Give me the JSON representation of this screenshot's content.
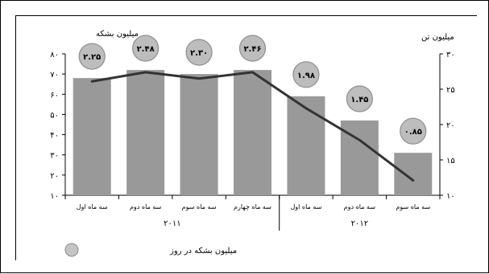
{
  "chart_data": {
    "type": "bar",
    "left_axis_label": "میلیون بشکه",
    "right_axis_label": "میلیون تن",
    "left_ticks": [
      "۱۰",
      "۲۰",
      "۳۰",
      "۴۰",
      "۵۰",
      "۶۰",
      "۷۰",
      "۸۰"
    ],
    "right_ticks": [
      "۱۰",
      "۱۵",
      "۲۰",
      "۲۵",
      "۳۰"
    ],
    "left_ylim": [
      10,
      80
    ],
    "right_ylim": [
      10,
      30
    ],
    "categories": [
      "سه ماه اول",
      "سه ماه دوم",
      "سه ماه سوم",
      "سه ماه چهارم",
      "سه ماه اول",
      "سه ماه دوم",
      "سه ماه سوم"
    ],
    "year_groups": [
      {
        "label": "۲۰۱۱",
        "count": 4
      },
      {
        "label": "۲۰۱۲",
        "count": 3
      }
    ],
    "series": [
      {
        "name": "",
        "kind": "bar",
        "axis": "left",
        "color": "#999999",
        "values": [
          68,
          72,
          70,
          72,
          59,
          47,
          31
        ]
      },
      {
        "name": "",
        "kind": "line",
        "axis": "right",
        "color": "#333333",
        "values": [
          26.1,
          27.4,
          26.5,
          27.4,
          22.3,
          17.8,
          12.1
        ]
      },
      {
        "name": "میلیون بشکه در روز",
        "kind": "bubble_label",
        "color": "#bdbdbd",
        "labels": [
          "۲.۲۵",
          "۲.۴۸",
          "۲.۳۰",
          "۲.۴۶",
          "۱.۹۸",
          "۱.۴۵",
          "۰.۸۵"
        ]
      }
    ],
    "legend_position": "bottom-left",
    "grid": false
  }
}
